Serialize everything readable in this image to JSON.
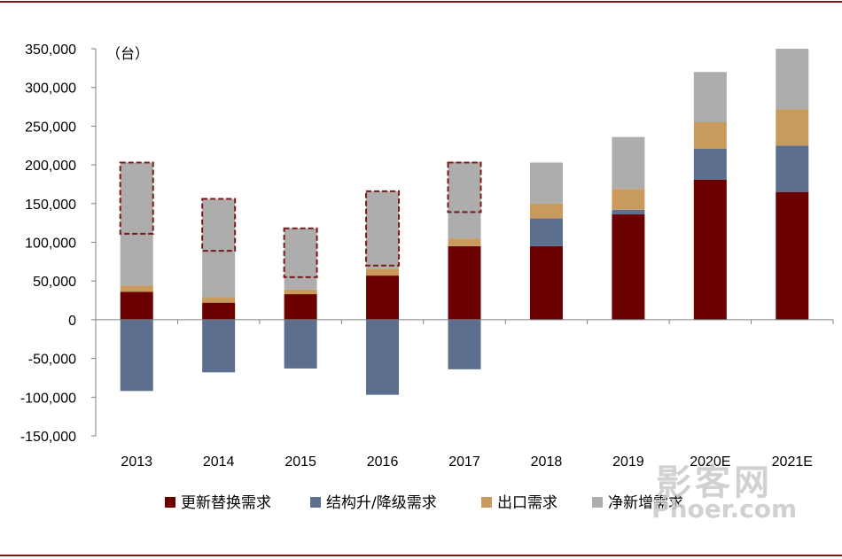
{
  "chart_data": {
    "type": "bar",
    "stacked": true,
    "unit_label": "（台）",
    "categories": [
      "2013",
      "2014",
      "2015",
      "2016",
      "2017",
      "2018",
      "2019",
      "2020E",
      "2021E"
    ],
    "ylim": [
      -150000,
      350000
    ],
    "yticks": [
      "350,000",
      "300,000",
      "250,000",
      "200,000",
      "150,000",
      "100,000",
      "50,000",
      "0",
      "-50,000",
      "-100,000",
      "-150,000"
    ],
    "ytick_values": [
      350000,
      300000,
      250000,
      200000,
      150000,
      100000,
      50000,
      0,
      -50000,
      -100000,
      -150000
    ],
    "series": [
      {
        "name": "更新替换需求",
        "color": "#6b0000",
        "values": [
          36000,
          22000,
          33000,
          57000,
          95000,
          95000,
          136000,
          181000,
          165000
        ]
      },
      {
        "name": "结构升/降级需求",
        "color": "#5c6f8f",
        "values": [
          -92000,
          -68000,
          -63000,
          -97000,
          -64000,
          36000,
          6000,
          40000,
          60000
        ]
      },
      {
        "name": "出口需求",
        "color": "#c89a5c",
        "values": [
          8000,
          7000,
          6000,
          9000,
          10000,
          19000,
          27000,
          34000,
          47000
        ]
      },
      {
        "name": "净新增需求",
        "color": "#adadad",
        "values": [
          159000,
          127000,
          79000,
          100000,
          99000,
          53000,
          67000,
          65000,
          78000
        ]
      }
    ],
    "highlight_boxes": [
      {
        "category": "2013",
        "from": 111000,
        "to": 203000
      },
      {
        "category": "2014",
        "from": 89000,
        "to": 156000
      },
      {
        "category": "2015",
        "from": 55000,
        "to": 118000
      },
      {
        "category": "2016",
        "from": 70000,
        "to": 166000
      },
      {
        "category": "2017",
        "from": 139000,
        "to": 203000
      }
    ],
    "legend_position": "bottom",
    "grid": false
  },
  "watermark": {
    "line1": "影客网",
    "line2": "Phoer.com"
  },
  "colors": {
    "frame": "#7a1a1a",
    "axis": "#7f7f7f",
    "highlight": "#7a1a1a"
  }
}
